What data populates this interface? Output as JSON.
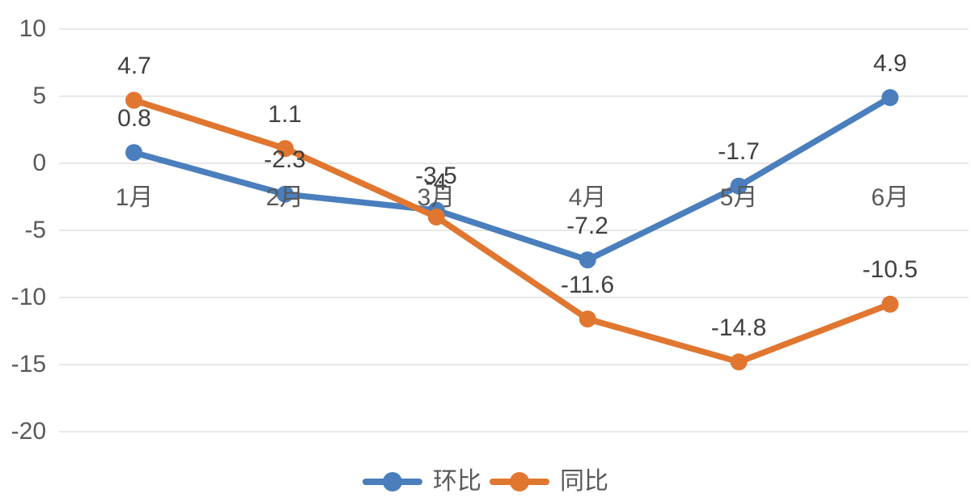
{
  "chart_data": {
    "type": "line",
    "title": "",
    "xlabel": "",
    "ylabel": "",
    "categories": [
      "1月",
      "2月",
      "3月",
      "4月",
      "5月",
      "6月"
    ],
    "series": [
      {
        "name": "环比",
        "color": "#4a7ebd",
        "values": [
          0.8,
          -2.3,
          -3.5,
          -7.2,
          -1.7,
          4.9
        ],
        "labels": [
          "0.8",
          "-2.3",
          "-3.5",
          "-7.2",
          "-1.7",
          "4.9"
        ]
      },
      {
        "name": "同比",
        "color": "#e0762f",
        "values": [
          4.7,
          1.1,
          -4,
          -11.6,
          -14.8,
          -10.5
        ],
        "labels": [
          "4.7",
          "1.1",
          "-4",
          "-11.6",
          "-14.8",
          "-10.5"
        ]
      }
    ],
    "y_ticks": [
      10,
      5,
      0,
      -5,
      -10,
      -15,
      -20
    ],
    "ylim": [
      -20,
      10
    ],
    "grid": "horizontal",
    "legend_position": "bottom-center",
    "notes": "orange 3月 label (-4) is visually obscured by the blue -3.5 label and the 3月 category label"
  },
  "colors": {
    "background": "#ffffff",
    "gridline": "#d9d9d9",
    "axis_text": "#595959",
    "data_label_text": "#404040",
    "series_blue": "#4a7ebd",
    "series_orange": "#e0762f"
  }
}
